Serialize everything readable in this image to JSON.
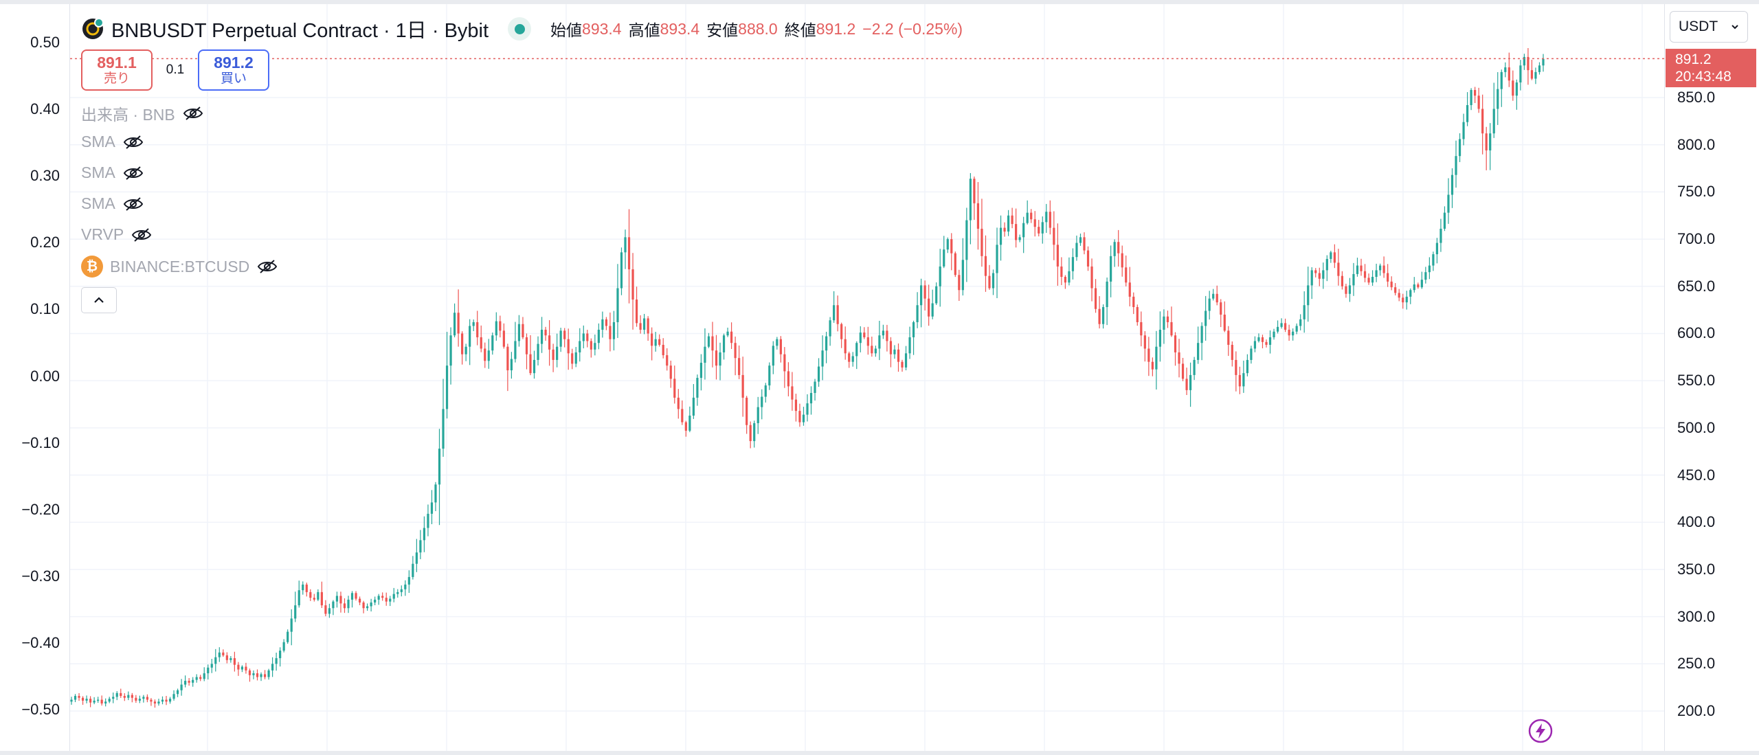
{
  "legend": {
    "symbol_title": "BNBUSDT Perpetual Contract · 1日 · Bybit",
    "ohlc": {
      "open_label": "始値",
      "open": "893.4",
      "high_label": "高値",
      "high": "893.4",
      "low_label": "安値",
      "low": "888.0",
      "close_label": "終値",
      "close": "891.2",
      "change": "−2.2 (−0.25%)"
    },
    "sell": {
      "price": "891.1",
      "label": "売り"
    },
    "buy": {
      "price": "891.2",
      "label": "買い"
    },
    "spread": "0.1",
    "indicators": [
      {
        "label": "出来高 · BNB"
      },
      {
        "label": "SMA"
      },
      {
        "label": "SMA"
      },
      {
        "label": "SMA"
      },
      {
        "label": "VRVP"
      },
      {
        "label": "BINANCE:BTCUSD"
      }
    ]
  },
  "currency": "USDT",
  "last_price": {
    "price": "891.2",
    "countdown": "20:43:48"
  },
  "left_axis_labels": [
    "0.50",
    "0.40",
    "0.30",
    "0.20",
    "0.10",
    "0.00",
    "−0.10",
    "−0.20",
    "−0.30",
    "−0.40",
    "−0.50"
  ],
  "right_axis_labels": [
    "850.0",
    "800.0",
    "750.0",
    "700.0",
    "650.0",
    "600.0",
    "550.0",
    "500.0",
    "450.0",
    "400.0",
    "350.0",
    "300.0",
    "250.0",
    "200.0"
  ],
  "colors": {
    "up": "#26a69a",
    "down": "#ef5350",
    "last_price": "#e35f5f",
    "grid": "#f0f3fa"
  },
  "icons": {
    "bolt": "lightning-bolt-icon",
    "eye": "eye-off-icon",
    "chevron": "chevron-up-icon"
  },
  "chart_data": {
    "type": "candlestick",
    "timeframe": "1日",
    "y_range": [
      180,
      905
    ],
    "left_y_range": [
      -0.5,
      0.5
    ],
    "closes": [
      212,
      216,
      214,
      211,
      213,
      209,
      211,
      212,
      208,
      210,
      213,
      215,
      219,
      216,
      214,
      217,
      214,
      211,
      213,
      215,
      212,
      210,
      208,
      210,
      212,
      210,
      213,
      218,
      222,
      228,
      232,
      230,
      233,
      236,
      234,
      240,
      246,
      250,
      257,
      262,
      259,
      254,
      256,
      249,
      244,
      247,
      243,
      238,
      240,
      236,
      239,
      236,
      243,
      250,
      256,
      264,
      273,
      284,
      298,
      312,
      328,
      334,
      326,
      320,
      318,
      326,
      312,
      303,
      309,
      316,
      322,
      314,
      309,
      318,
      325,
      319,
      315,
      309,
      311,
      315,
      318,
      322,
      320,
      316,
      319,
      324,
      326,
      329,
      334,
      342,
      356,
      368,
      381,
      394,
      409,
      421,
      440,
      478,
      520,
      566,
      598,
      622,
      600,
      578,
      586,
      608,
      612,
      596,
      584,
      571,
      582,
      598,
      613,
      603,
      586,
      561,
      573,
      592,
      610,
      596,
      578,
      558,
      572,
      589,
      604,
      598,
      583,
      572,
      586,
      603,
      594,
      579,
      568,
      580,
      592,
      600,
      592,
      583,
      590,
      604,
      615,
      608,
      594,
      612,
      648,
      686,
      702,
      668,
      636,
      611,
      604,
      616,
      600,
      587,
      594,
      588,
      577,
      566,
      552,
      532,
      520,
      506,
      497,
      513,
      532,
      553,
      569,
      586,
      597,
      582,
      566,
      580,
      598,
      602,
      590,
      574,
      556,
      532,
      503,
      486,
      505,
      522,
      533,
      545,
      566,
      587,
      594,
      578,
      560,
      544,
      530,
      518,
      506,
      514,
      526,
      537,
      549,
      565,
      582,
      597,
      614,
      630,
      610,
      594,
      579,
      570,
      576,
      590,
      601,
      596,
      587,
      579,
      584,
      598,
      603,
      592,
      578,
      583,
      570,
      564,
      579,
      596,
      612,
      630,
      651,
      637,
      618,
      632,
      650,
      671,
      689,
      700,
      685,
      662,
      646,
      678,
      720,
      764,
      738,
      711,
      682,
      661,
      648,
      664,
      694,
      712,
      708,
      725,
      716,
      699,
      702,
      717,
      728,
      721,
      713,
      706,
      718,
      729,
      712,
      694,
      671,
      660,
      654,
      666,
      681,
      696,
      702,
      688,
      671,
      648,
      626,
      610,
      628,
      655,
      682,
      697,
      685,
      670,
      654,
      639,
      628,
      612,
      598,
      584,
      570,
      562,
      586,
      604,
      618,
      612,
      598,
      580,
      568,
      552,
      540,
      556,
      572,
      590,
      608,
      624,
      637,
      642,
      633,
      620,
      603,
      588,
      572,
      556,
      544,
      558,
      572,
      584,
      592,
      596,
      591,
      588,
      596,
      602,
      607,
      611,
      604,
      598,
      602,
      608,
      615,
      630,
      651,
      667,
      664,
      658,
      667,
      679,
      686,
      675,
      661,
      650,
      642,
      651,
      663,
      672,
      666,
      659,
      654,
      660,
      667,
      672,
      664,
      655,
      649,
      643,
      638,
      633,
      639,
      646,
      652,
      649,
      657,
      665,
      672,
      684,
      696,
      711,
      728,
      747,
      768,
      788,
      806,
      824,
      842,
      858,
      852,
      838,
      812,
      794,
      812,
      838,
      859,
      877,
      882,
      868,
      852,
      866,
      884,
      893,
      879,
      870,
      877,
      884,
      891
    ]
  }
}
